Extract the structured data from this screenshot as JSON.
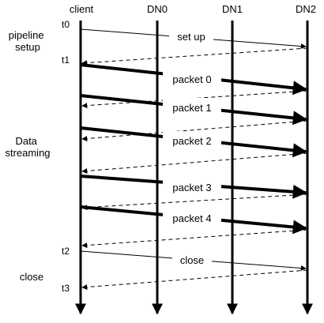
{
  "participants": [
    "client",
    "DN0",
    "DN1",
    "DN2"
  ],
  "phases": [
    "pipeline setup",
    "Data streaming",
    "close"
  ],
  "time_marks": [
    "t0",
    "t1",
    "t2",
    "t3"
  ],
  "messages": [
    {
      "label": "set up",
      "from": "client",
      "to": "DN2",
      "kind": "request"
    },
    {
      "label": "",
      "from": "DN2",
      "to": "client",
      "kind": "ack"
    },
    {
      "label": "packet 0",
      "from": "client",
      "to": "DN2",
      "kind": "data"
    },
    {
      "label": "",
      "from": "DN2",
      "to": "client",
      "kind": "ack"
    },
    {
      "label": "packet 1",
      "from": "client",
      "to": "DN2",
      "kind": "data"
    },
    {
      "label": "",
      "from": "DN2",
      "to": "client",
      "kind": "ack"
    },
    {
      "label": "packet 2",
      "from": "client",
      "to": "DN2",
      "kind": "data"
    },
    {
      "label": "",
      "from": "DN2",
      "to": "client",
      "kind": "ack"
    },
    {
      "label": "packet 3",
      "from": "client",
      "to": "DN2",
      "kind": "data"
    },
    {
      "label": "",
      "from": "DN2",
      "to": "client",
      "kind": "ack"
    },
    {
      "label": "packet 4",
      "from": "client",
      "to": "DN2",
      "kind": "data"
    },
    {
      "label": "",
      "from": "DN2",
      "to": "client",
      "kind": "ack"
    },
    {
      "label": "close",
      "from": "client",
      "to": "DN2",
      "kind": "request"
    },
    {
      "label": "",
      "from": "DN2",
      "to": "client",
      "kind": "ack"
    }
  ]
}
